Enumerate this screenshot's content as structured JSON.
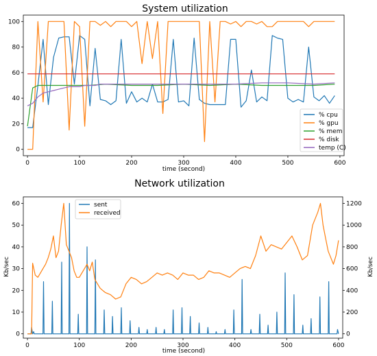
{
  "chart_data": [
    {
      "type": "line",
      "title": "System utilization",
      "xlabel": "time (second)",
      "ylabel": "",
      "xlim": [
        -8,
        608
      ],
      "ylim": [
        -5,
        105
      ],
      "xticks": [
        0,
        100,
        200,
        300,
        400,
        500,
        600
      ],
      "yticks": [
        0,
        20,
        40,
        60,
        80,
        100
      ],
      "legend": "bottom-right",
      "series": [
        {
          "name": "% cpu",
          "color": "#1f77b4",
          "x": [
            0,
            10,
            20,
            30,
            40,
            50,
            60,
            70,
            80,
            90,
            100,
            110,
            120,
            130,
            140,
            150,
            160,
            170,
            180,
            190,
            200,
            210,
            220,
            230,
            240,
            250,
            260,
            270,
            280,
            290,
            300,
            310,
            320,
            330,
            340,
            350,
            360,
            370,
            380,
            390,
            400,
            410,
            420,
            430,
            440,
            450,
            460,
            470,
            480,
            490,
            500,
            510,
            520,
            530,
            540,
            550,
            560,
            570,
            580,
            590
          ],
          "y": [
            17,
            17,
            50,
            86,
            35,
            72,
            87,
            88,
            88,
            51,
            89,
            86,
            34,
            79,
            39,
            38,
            35,
            38,
            86,
            36,
            45,
            37,
            40,
            37,
            51,
            37,
            37,
            39,
            86,
            37,
            38,
            34,
            87,
            39,
            36,
            35,
            35,
            35,
            35,
            86,
            86,
            33,
            38,
            62,
            37,
            41,
            38,
            89,
            87,
            86,
            40,
            37,
            39,
            37,
            80,
            41,
            38,
            42,
            36,
            42
          ]
        },
        {
          "name": "% gpu",
          "color": "#ff7f0e",
          "x": [
            0,
            10,
            20,
            30,
            40,
            50,
            60,
            70,
            80,
            90,
            100,
            110,
            120,
            130,
            140,
            150,
            160,
            170,
            180,
            190,
            200,
            210,
            220,
            230,
            240,
            250,
            260,
            270,
            280,
            290,
            300,
            310,
            320,
            330,
            340,
            350,
            360,
            370,
            380,
            390,
            400,
            410,
            420,
            430,
            440,
            450,
            460,
            470,
            480,
            490,
            500,
            510,
            520,
            530,
            540,
            550,
            560,
            570,
            580,
            590
          ],
          "y": [
            0,
            0,
            100,
            37,
            100,
            100,
            100,
            100,
            15,
            100,
            96,
            18,
            100,
            100,
            97,
            100,
            96,
            100,
            100,
            100,
            96,
            100,
            67,
            100,
            71,
            100,
            28,
            100,
            100,
            100,
            100,
            100,
            100,
            100,
            6,
            100,
            37,
            100,
            100,
            98,
            100,
            96,
            100,
            100,
            98,
            100,
            96,
            96,
            100,
            100,
            100,
            100,
            100,
            100,
            96,
            100,
            100,
            100,
            100,
            100
          ]
        },
        {
          "name": "% mem",
          "color": "#2ca02c",
          "x": [
            0,
            10,
            20,
            30,
            40,
            50,
            60,
            80,
            100,
            120,
            150,
            200,
            250,
            300,
            350,
            400,
            450,
            500,
            550,
            590
          ],
          "y": [
            18,
            48,
            50,
            50,
            50,
            50,
            50,
            50,
            50,
            50,
            51,
            50,
            50,
            51,
            50,
            51,
            50,
            50,
            50,
            51
          ]
        },
        {
          "name": "% disk",
          "color": "#d62728",
          "x": [
            0,
            590
          ],
          "y": [
            59,
            59
          ]
        },
        {
          "name": "temp (C)",
          "color": "#9467bd",
          "x": [
            0,
            10,
            20,
            30,
            40,
            50,
            60,
            70,
            80,
            90,
            100,
            110,
            120,
            130,
            140,
            150,
            200,
            250,
            300,
            350,
            400,
            450,
            480,
            500,
            550,
            590
          ],
          "y": [
            34,
            36,
            41,
            44,
            45,
            46,
            47,
            48,
            49,
            49,
            49,
            50,
            50,
            50,
            51,
            51,
            51,
            51,
            51,
            51,
            51,
            52,
            52,
            52,
            51,
            52
          ]
        }
      ]
    },
    {
      "type": "line",
      "title": "Network utilization",
      "xlabel": "time (second)",
      "ylabel": "Kb/sec",
      "y2label": "Kb/sec",
      "xlim": [
        -8,
        608
      ],
      "ylim": [
        -2,
        63
      ],
      "y2lim": [
        -40,
        1260
      ],
      "xticks": [
        0,
        100,
        200,
        300,
        400,
        500,
        600
      ],
      "yticks": [
        0,
        10,
        20,
        30,
        40,
        50,
        60
      ],
      "y2ticks": [
        0,
        200,
        400,
        600,
        800,
        1000,
        1200
      ],
      "legend": "top-left",
      "series": [
        {
          "name": "sent",
          "color": "#1f77b4",
          "axis": "left",
          "x": [
            0,
            7,
            8,
            10,
            12,
            13,
            30,
            31,
            32,
            47,
            48,
            49,
            65,
            66,
            67,
            80,
            81,
            82,
            97,
            98,
            99,
            114,
            115,
            116,
            130,
            131,
            132,
            147,
            148,
            149,
            163,
            164,
            165,
            180,
            181,
            182,
            197,
            198,
            199,
            214,
            215,
            216,
            230,
            231,
            232,
            247,
            248,
            249,
            263,
            264,
            265,
            280,
            281,
            282,
            297,
            298,
            299,
            313,
            314,
            315,
            330,
            331,
            332,
            347,
            348,
            349,
            363,
            364,
            365,
            380,
            381,
            382,
            397,
            398,
            399,
            413,
            414,
            415,
            430,
            431,
            432,
            447,
            448,
            449,
            463,
            464,
            465,
            480,
            481,
            482,
            496,
            497,
            498,
            513,
            514,
            515,
            530,
            531,
            532,
            546,
            547,
            548,
            563,
            564,
            565,
            580,
            581,
            582,
            597,
            598,
            600
          ],
          "y": [
            0,
            0,
            3,
            0,
            1,
            0,
            0,
            24,
            0,
            0,
            15,
            0,
            0,
            33,
            0,
            0,
            60,
            0,
            0,
            9,
            0,
            0,
            40,
            0,
            0,
            34,
            0,
            0,
            11,
            0,
            0,
            8,
            0,
            0,
            12,
            0,
            0,
            6,
            0,
            0,
            3,
            0,
            0,
            2,
            0,
            0,
            3,
            0,
            0,
            2,
            0,
            0,
            11,
            0,
            0,
            12,
            0,
            0,
            8,
            0,
            0,
            5,
            0,
            0,
            3,
            0,
            0,
            1,
            0,
            0,
            2,
            0,
            0,
            11,
            0,
            0,
            25,
            0,
            0,
            2,
            0,
            0,
            9,
            0,
            0,
            4,
            0,
            0,
            10,
            0,
            0,
            28,
            0,
            0,
            18,
            0,
            0,
            4,
            0,
            0,
            7,
            0,
            0,
            17,
            0,
            0,
            24,
            0,
            0,
            2,
            0
          ]
        },
        {
          "name": "received",
          "color": "#ff7f0e",
          "axis": "right",
          "x": [
            0,
            8,
            10,
            15,
            20,
            25,
            30,
            35,
            40,
            45,
            50,
            55,
            60,
            65,
            70,
            75,
            80,
            85,
            90,
            95,
            100,
            105,
            110,
            115,
            120,
            125,
            130,
            135,
            140,
            145,
            150,
            160,
            170,
            180,
            190,
            200,
            210,
            220,
            230,
            240,
            250,
            260,
            270,
            280,
            290,
            300,
            310,
            320,
            330,
            340,
            350,
            360,
            370,
            380,
            390,
            400,
            410,
            420,
            430,
            440,
            450,
            460,
            470,
            480,
            490,
            500,
            510,
            520,
            530,
            540,
            550,
            560,
            565,
            570,
            575,
            580,
            585,
            590,
            595,
            600
          ],
          "y": [
            0,
            0,
            650,
            540,
            520,
            560,
            600,
            640,
            700,
            780,
            900,
            700,
            760,
            1000,
            1200,
            820,
            760,
            700,
            580,
            520,
            520,
            560,
            600,
            640,
            580,
            660,
            500,
            460,
            420,
            400,
            380,
            360,
            320,
            340,
            460,
            520,
            500,
            460,
            480,
            520,
            560,
            540,
            560,
            540,
            500,
            560,
            540,
            540,
            500,
            520,
            580,
            560,
            560,
            540,
            520,
            560,
            600,
            620,
            600,
            720,
            900,
            760,
            820,
            800,
            780,
            840,
            900,
            800,
            680,
            720,
            1000,
            1120,
            1200,
            1000,
            880,
            760,
            700,
            640,
            720,
            860
          ]
        }
      ]
    }
  ]
}
